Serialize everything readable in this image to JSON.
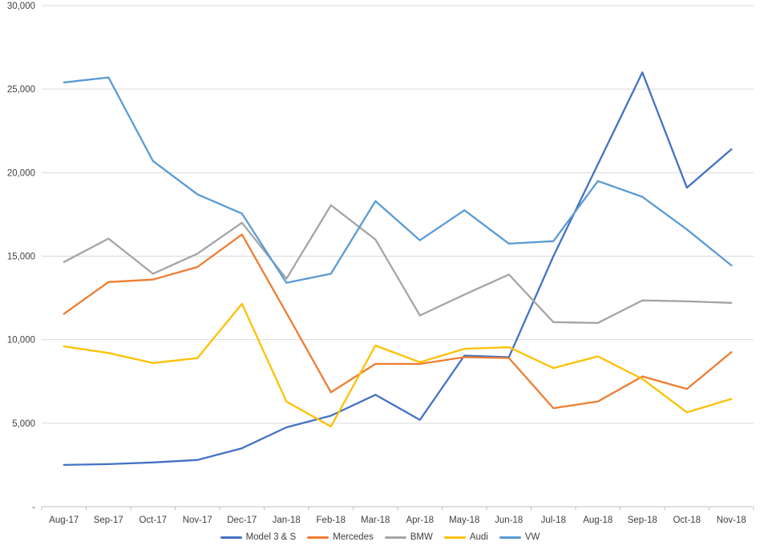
{
  "chart_data": {
    "type": "line",
    "title": "",
    "xlabel": "",
    "ylabel": "",
    "categories": [
      "Aug-17",
      "Sep-17",
      "Oct-17",
      "Nov-17",
      "Dec-17",
      "Jan-18",
      "Feb-18",
      "Mar-18",
      "Apr-18",
      "May-18",
      "Jun-18",
      "Jul-18",
      "Aug-18",
      "Sep-18",
      "Oct-18",
      "Nov-18"
    ],
    "series": [
      {
        "name": "Model 3 & S",
        "color": "#4472C4",
        "values": [
          2500,
          2550,
          2650,
          2800,
          3500,
          4750,
          5450,
          6700,
          5200,
          9050,
          8950,
          15000,
          20500,
          26000,
          19100,
          21400
        ]
      },
      {
        "name": "Mercedes",
        "color": "#ED7D31",
        "values": [
          11550,
          13450,
          13600,
          14350,
          16300,
          11600,
          6850,
          8550,
          8550,
          8950,
          8900,
          5900,
          6300,
          7800,
          7050,
          9250
        ]
      },
      {
        "name": "BMW",
        "color": "#A5A5A5",
        "values": [
          14650,
          16050,
          13950,
          15150,
          17000,
          13650,
          18050,
          16000,
          11450,
          12700,
          13900,
          11050,
          11000,
          12350,
          12300,
          12200
        ]
      },
      {
        "name": "Audi",
        "color": "#FFC000",
        "values": [
          9600,
          9200,
          8600,
          8900,
          12150,
          6300,
          4800,
          9650,
          8650,
          9450,
          9550,
          8300,
          9000,
          7650,
          5650,
          6450
        ]
      },
      {
        "name": "VW",
        "color": "#5B9BD5",
        "values": [
          25400,
          25700,
          20700,
          18700,
          17550,
          13400,
          13950,
          18300,
          15950,
          17750,
          15750,
          15900,
          19500,
          18550,
          16600,
          14450
        ]
      }
    ],
    "y_axis": {
      "min": 0,
      "max": 30000,
      "step": 5000,
      "ticks": [
        {
          "value": 0,
          "label": "-"
        },
        {
          "value": 5000,
          "label": "5,000"
        },
        {
          "value": 10000,
          "label": "10,000"
        },
        {
          "value": 15000,
          "label": "15,000"
        },
        {
          "value": 20000,
          "label": "20,000"
        },
        {
          "value": 25000,
          "label": "25,000"
        },
        {
          "value": 30000,
          "label": "30,000"
        }
      ]
    },
    "grid": true,
    "legend_position": "bottom",
    "style": {
      "gridline_color": "#D9D9D9",
      "axis_line_color": "#BFBFBF",
      "tick_color": "#BFBFBF",
      "label_color": "#404040",
      "background": "#FFFFFF",
      "line_width": 2.3
    }
  }
}
